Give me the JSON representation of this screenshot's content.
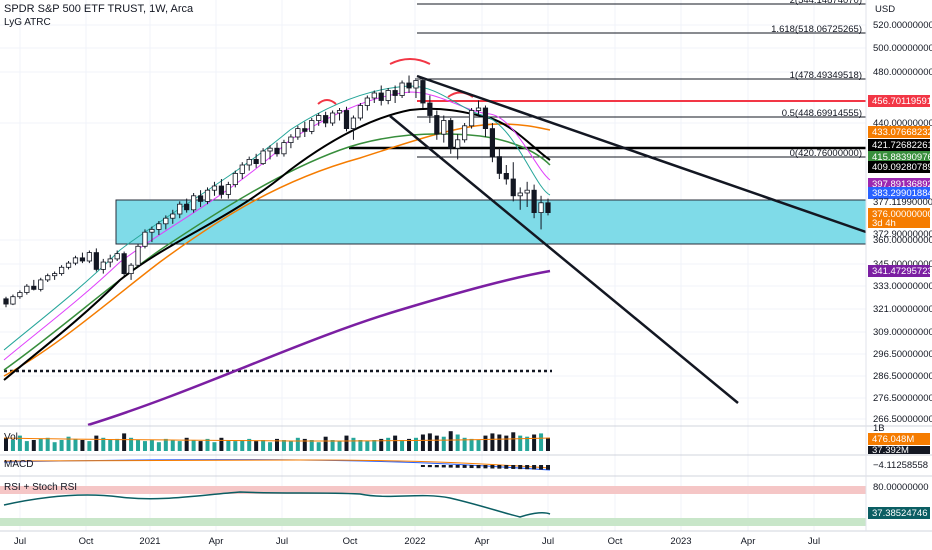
{
  "header": {
    "symbol": "SPDR S&P 500 ETF TRUST, 1W, Arca",
    "indicator": "LyG ATRC"
  },
  "panes": {
    "vol": "Vol",
    "macd": "MACD",
    "rsi": "RSI + Stoch RSI"
  },
  "chart_data": {
    "type": "candlestick",
    "currency": "USD",
    "price_axis": [
      "520.00000000",
      "500.00000000",
      "480.00000000",
      "440.00000000",
      "360.00000000",
      "345.00000000",
      "333.00000000",
      "321.00000000",
      "309.00000000",
      "296.50000000",
      "286.50000000",
      "276.50000000",
      "266.50000000"
    ],
    "time_axis": [
      "Jul",
      "Oct",
      "2021",
      "Apr",
      "Jul",
      "Oct",
      "2022",
      "Apr",
      "Jul",
      "Oct",
      "2023",
      "Apr",
      "Jul"
    ],
    "price_tags": [
      {
        "text": "456.70119591",
        "color": "#f23645"
      },
      {
        "text": "433.07668232",
        "color": "#f57c00"
      },
      {
        "text": "421.72682261",
        "color": "#000000"
      },
      {
        "text": "415.88390976",
        "color": "#388e3c"
      },
      {
        "text": "409.09280789",
        "color": "#000000"
      },
      {
        "text": "397.89136892",
        "color": "#9c27b0"
      },
      {
        "text": "383.29901884",
        "color": "#2962ff"
      },
      {
        "text": "376.00000000",
        "sub": "3d 4h",
        "color": "#f57c00"
      },
      {
        "text": "341.47295723",
        "color": "#7b1fa2"
      }
    ],
    "box_levels": [
      "377.11990000",
      "372.90000000"
    ],
    "fib_levels": [
      {
        "label": "2(544.14874070)",
        "value": 544.1487407
      },
      {
        "label": "1.618(518.06725265)",
        "value": 518.06725265
      },
      {
        "label": "1(478.49349518)",
        "value": 478.49349518
      },
      {
        "label": "0.5(448.69914555)",
        "value": 448.69914555
      },
      {
        "label": "0(420.76000000)",
        "value": 420.76
      }
    ],
    "candles": [
      [
        304,
        306,
        296,
        299
      ],
      [
        299,
        308,
        298,
        306
      ],
      [
        306,
        312,
        304,
        310
      ],
      [
        310,
        318,
        308,
        316
      ],
      [
        316,
        322,
        312,
        313
      ],
      [
        313,
        324,
        311,
        322
      ],
      [
        322,
        328,
        320,
        326
      ],
      [
        326,
        330,
        322,
        328
      ],
      [
        328,
        336,
        326,
        334
      ],
      [
        334,
        340,
        332,
        338
      ],
      [
        338,
        345,
        336,
        343
      ],
      [
        343,
        348,
        338,
        340
      ],
      [
        340,
        350,
        338,
        348
      ],
      [
        348,
        352,
        330,
        332
      ],
      [
        332,
        342,
        328,
        339
      ],
      [
        339,
        346,
        334,
        342
      ],
      [
        342,
        350,
        340,
        347
      ],
      [
        347,
        349,
        326,
        328
      ],
      [
        328,
        338,
        322,
        336
      ],
      [
        336,
        356,
        334,
        354
      ],
      [
        354,
        364,
        352,
        362
      ],
      [
        362,
        366,
        358,
        364
      ],
      [
        364,
        370,
        360,
        368
      ],
      [
        368,
        374,
        364,
        372
      ],
      [
        372,
        378,
        368,
        375
      ],
      [
        375,
        384,
        372,
        382
      ],
      [
        382,
        386,
        376,
        378
      ],
      [
        378,
        390,
        376,
        388
      ],
      [
        388,
        392,
        380,
        384
      ],
      [
        384,
        394,
        382,
        392
      ],
      [
        392,
        398,
        388,
        395
      ],
      [
        395,
        400,
        386,
        389
      ],
      [
        389,
        398,
        386,
        396
      ],
      [
        396,
        406,
        394,
        404
      ],
      [
        404,
        412,
        400,
        410
      ],
      [
        410,
        416,
        406,
        414
      ],
      [
        414,
        418,
        408,
        411
      ],
      [
        411,
        422,
        410,
        420
      ],
      [
        420,
        424,
        414,
        422
      ],
      [
        422,
        426,
        416,
        418
      ],
      [
        418,
        428,
        416,
        426
      ],
      [
        426,
        432,
        422,
        430
      ],
      [
        430,
        438,
        428,
        436
      ],
      [
        436,
        441,
        430,
        434
      ],
      [
        434,
        444,
        432,
        442
      ],
      [
        442,
        448,
        438,
        446
      ],
      [
        446,
        449,
        437,
        440
      ],
      [
        440,
        450,
        438,
        448
      ],
      [
        448,
        452,
        442,
        450
      ],
      [
        450,
        453,
        434,
        436
      ],
      [
        436,
        446,
        428,
        444
      ],
      [
        444,
        456,
        442,
        454
      ],
      [
        454,
        462,
        450,
        460
      ],
      [
        460,
        466,
        456,
        464
      ],
      [
        464,
        470,
        454,
        458
      ],
      [
        458,
        468,
        455,
        466
      ],
      [
        466,
        470,
        456,
        462
      ],
      [
        462,
        474,
        460,
        472
      ],
      [
        472,
        478,
        464,
        468
      ],
      [
        468,
        476,
        460,
        474
      ],
      [
        474,
        476,
        452,
        456
      ],
      [
        456,
        462,
        440,
        446
      ],
      [
        446,
        450,
        428,
        432
      ],
      [
        432,
        446,
        426,
        442
      ],
      [
        442,
        444,
        418,
        422
      ],
      [
        422,
        432,
        414,
        428
      ],
      [
        428,
        440,
        426,
        438
      ],
      [
        438,
        452,
        436,
        450
      ],
      [
        450,
        458,
        446,
        452
      ],
      [
        452,
        454,
        430,
        436
      ],
      [
        436,
        440,
        412,
        416
      ],
      [
        416,
        422,
        400,
        404
      ],
      [
        404,
        410,
        396,
        400
      ],
      [
        400,
        412,
        384,
        388
      ],
      [
        388,
        394,
        378,
        390
      ],
      [
        390,
        398,
        380,
        392
      ],
      [
        392,
        396,
        372,
        376
      ],
      [
        376,
        388,
        364,
        383
      ],
      [
        383,
        386,
        374,
        376
      ]
    ]
  }
}
